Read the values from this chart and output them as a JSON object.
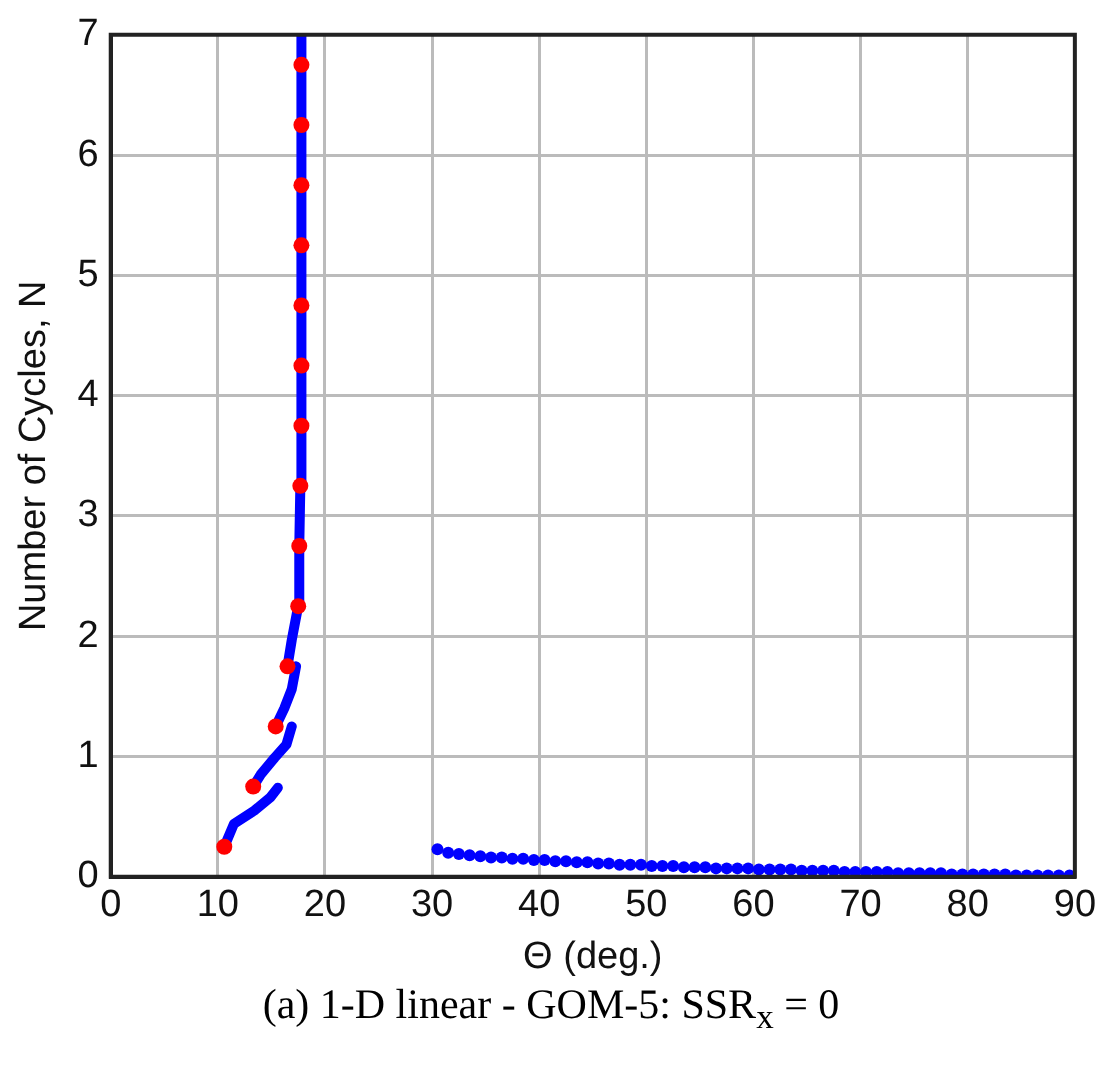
{
  "chart_data": {
    "type": "line",
    "xlabel": "Θ (deg.)",
    "ylabel": "Number of Cycles, N",
    "annotations": [
      "(a) 1-D linear - GOM-5: SSR$_{x}$ = 0"
    ],
    "xlim": [
      0,
      90
    ],
    "xticks": [
      0,
      10,
      20,
      30,
      40,
      50,
      60,
      70,
      80,
      90
    ],
    "ylim": [
      0,
      7
    ],
    "yticks": [
      0,
      1,
      2,
      3,
      4,
      5,
      6,
      7
    ],
    "grid": true,
    "legend": false,
    "series": [
      {
        "color": "#0000ff",
        "marker": "none",
        "line_style": "solid",
        "x": [
          10.6,
          11.5,
          13.4,
          14.9,
          15.6,
          null,
          13.3,
          14.0,
          15.3,
          16.4,
          16.9,
          null,
          15.4,
          16.2,
          16.9,
          17.3,
          null,
          16.5,
          16.9,
          17.5,
          17.6,
          17.7,
          17.8
        ],
        "values": [
          0.25,
          0.44,
          0.55,
          0.66,
          0.74,
          null,
          0.75,
          0.85,
          0.99,
          1.1,
          1.25,
          null,
          1.25,
          1.4,
          1.56,
          1.75,
          null,
          1.75,
          1.97,
          2.25,
          2.75,
          3.25,
          7
        ]
      },
      {
        "type": "scatter",
        "color": "#0000ff",
        "marker": "circle",
        "x": [
          30.5,
          31.5,
          32.5,
          33.5,
          34.5,
          35.5,
          36.5,
          37.5,
          38.5,
          39.5,
          40.5,
          41.5,
          42.5,
          43.5,
          44.5,
          45.5,
          46.5,
          47.5,
          48.5,
          49.5,
          50.5,
          51.5,
          52.5,
          53.5,
          54.5,
          55.5,
          56.5,
          57.5,
          58.5,
          59.5,
          60.5,
          61.5,
          62.5,
          63.5,
          64.5,
          65.5,
          66.5,
          67.5,
          68.5,
          69.5,
          70.5,
          71.5,
          72.5,
          73.5,
          74.5,
          75.5,
          76.5,
          77.5,
          78.5,
          79.5,
          80.5,
          81.5,
          82.5,
          83.5,
          84.5,
          85.5,
          86.5,
          87.5,
          88.5,
          89.5
        ],
        "values": [
          0.23,
          0.2,
          0.19,
          0.18,
          0.17,
          0.16,
          0.16,
          0.15,
          0.15,
          0.14,
          0.14,
          0.13,
          0.13,
          0.12,
          0.12,
          0.11,
          0.11,
          0.1,
          0.1,
          0.1,
          0.09,
          0.09,
          0.09,
          0.08,
          0.08,
          0.08,
          0.07,
          0.07,
          0.07,
          0.07,
          0.06,
          0.06,
          0.06,
          0.06,
          0.05,
          0.05,
          0.05,
          0.05,
          0.04,
          0.04,
          0.04,
          0.04,
          0.04,
          0.03,
          0.03,
          0.03,
          0.03,
          0.03,
          0.02,
          0.02,
          0.02,
          0.02,
          0.02,
          0.02,
          0.01,
          0.01,
          0.01,
          0.01,
          0.01,
          0.01
        ]
      },
      {
        "type": "scatter",
        "color": "#ff0000",
        "marker": "circle",
        "x": [
          10.6,
          13.3,
          15.4,
          16.5,
          17.5,
          17.6,
          17.7,
          17.8,
          17.8,
          17.8,
          17.8,
          17.8,
          17.8,
          17.8
        ],
        "values": [
          0.25,
          0.75,
          1.25,
          1.75,
          2.25,
          2.75,
          3.25,
          3.75,
          4.25,
          4.75,
          5.25,
          5.75,
          6.25,
          6.75
        ]
      }
    ]
  }
}
